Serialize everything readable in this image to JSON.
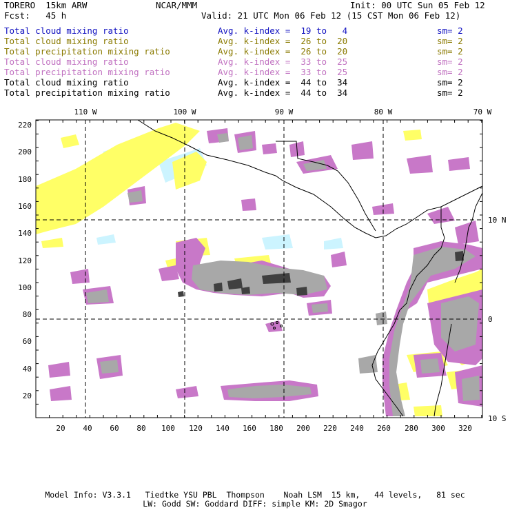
{
  "header": {
    "model": "TORERO  15km ARW",
    "org": "NCAR/MMM",
    "init": "Init: 00 UTC Sun 05 Feb 12",
    "fcst": "Fcst:   45 h",
    "valid": "Valid: 21 UTC Mon 06 Feb 12 (15 CST Mon 06 Feb 12)"
  },
  "legend": [
    {
      "field": "Total cloud mixing ratio",
      "kindex": "Avg. k-index =  19 to   4",
      "sm": "sm= 2",
      "color": "#1010c0"
    },
    {
      "field": "Total cloud mixing ratio",
      "kindex": "Avg. k-index =  26 to  20",
      "sm": "sm= 2",
      "color": "#8a7a00"
    },
    {
      "field": "Total precipitation mixing ratio",
      "kindex": "Avg. k-index =  26 to  20",
      "sm": "sm= 2",
      "color": "#8a7a00"
    },
    {
      "field": "Total cloud mixing ratio",
      "kindex": "Avg. k-index =  33 to  25",
      "sm": "sm= 2",
      "color": "#c070c0"
    },
    {
      "field": "Total precipitation mixing ratio",
      "kindex": "Avg. k-index =  33 to  25",
      "sm": "sm= 2",
      "color": "#c070c0"
    },
    {
      "field": "Total cloud mixing ratio",
      "kindex": "Avg. k-index =  44 to  34",
      "sm": "sm= 2",
      "color": "#000000"
    },
    {
      "field": "Total precipitation mixing ratio",
      "kindex": "Avg. k-index =  44 to  34",
      "sm": "sm= 2",
      "color": "#000000"
    }
  ],
  "map": {
    "lon_labels": [
      "110 W",
      "100 W",
      "90 W",
      "80 W",
      "70 W"
    ],
    "lat_labels": [
      "10 N",
      "0",
      "10 S"
    ],
    "x_ticks": [
      "20",
      "40",
      "60",
      "80",
      "100",
      "120",
      "140",
      "160",
      "180",
      "200",
      "220",
      "240",
      "260",
      "280",
      "300",
      "320"
    ],
    "y_ticks": [
      "220",
      "200",
      "180",
      "160",
      "140",
      "120",
      "100",
      "80",
      "60",
      "40",
      "20"
    ],
    "colors": {
      "yellow": "#ffff66",
      "cyan": "#ccf4ff",
      "purple": "#c878c8",
      "grey": "#a8a8a8",
      "dark": "#404040"
    }
  },
  "footer": {
    "line1": "Model Info: V3.3.1   Tiedtke YSU PBL  Thompson    Noah LSM  15 km,   44 levels,   81 sec",
    "line2": "LW: Godd SW: Goddard DIFF: simple KM: 2D Smagor"
  }
}
